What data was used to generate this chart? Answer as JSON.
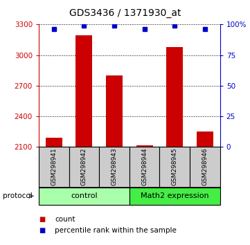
{
  "title": "GDS3436 / 1371930_at",
  "samples": [
    "GSM298941",
    "GSM298942",
    "GSM298943",
    "GSM298944",
    "GSM298945",
    "GSM298946"
  ],
  "counts": [
    2190,
    3195,
    2800,
    2115,
    3080,
    2255
  ],
  "percentile_ranks": [
    96,
    99,
    99,
    96,
    99,
    96
  ],
  "ylim_left": [
    2100,
    3300
  ],
  "ylim_right": [
    0,
    100
  ],
  "yticks_left": [
    2100,
    2400,
    2700,
    3000,
    3300
  ],
  "yticks_right": [
    0,
    25,
    50,
    75,
    100
  ],
  "ytick_labels_right": [
    "0",
    "25",
    "50",
    "75",
    "100%"
  ],
  "groups": [
    {
      "label": "control",
      "indices": [
        0,
        1,
        2
      ],
      "color": "#aaffaa"
    },
    {
      "label": "Math2 expression",
      "indices": [
        3,
        4,
        5
      ],
      "color": "#44ee44"
    }
  ],
  "bar_color": "#cc0000",
  "percentile_color": "#0000cc",
  "background_color": "#ffffff",
  "sample_bg_color": "#cccccc",
  "left_axis_color": "#cc0000",
  "right_axis_color": "#0000cc",
  "legend_items": [
    {
      "label": "count",
      "color": "#cc0000"
    },
    {
      "label": "percentile rank within the sample",
      "color": "#0000cc"
    }
  ],
  "bar_width": 0.55
}
